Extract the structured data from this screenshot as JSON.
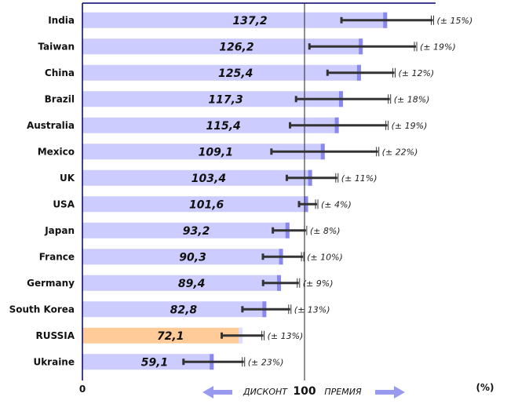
{
  "chart_data": {
    "type": "bar",
    "orientation": "horizontal",
    "categories": [
      "India",
      "Taiwan",
      "China",
      "Brazil",
      "Australia",
      "Mexico",
      "UK",
      "USA",
      "Japan",
      "France",
      "Germany",
      "South Korea",
      "RUSSIA",
      "Ukraine"
    ],
    "values": [
      137.2,
      126.2,
      125.4,
      117.3,
      115.4,
      109.1,
      103.4,
      101.6,
      93.2,
      90.3,
      89.4,
      82.8,
      72.1,
      59.1
    ],
    "value_labels": [
      "137,2",
      "126,2",
      "125,4",
      "117,3",
      "115,4",
      "109,1",
      "103,4",
      "101,6",
      "93,2",
      "90,3",
      "89,4",
      "82,8",
      "72,1",
      "59,1"
    ],
    "error_pct": [
      15,
      19,
      12,
      18,
      19,
      22,
      11,
      4,
      8,
      10,
      9,
      13,
      13,
      23
    ],
    "error_labels": [
      "(± 15%)",
      "(± 19%)",
      "(± 12%)",
      "(± 18%)",
      "(± 19%)",
      "(± 22%)",
      "(± 11%)",
      "(± 4%)",
      "(± 8%)",
      "(± 10%)",
      "(± 9%)",
      "(± 13%)",
      "(± 13%)",
      "(± 23%)"
    ],
    "highlight": "RUSSIA",
    "xlim": [
      0,
      160
    ],
    "reference_line": 100,
    "x_zero_label": "0",
    "x_left_label": "ДИСКОНТ",
    "x_center_label": "100",
    "x_right_label": "ПРЕМИЯ",
    "unit_label": "(%)",
    "colors": {
      "bar": "#ccccff",
      "bar_tip": "#8888ee",
      "highlight_bar": "#ffcc99",
      "error_line": "#333333",
      "axis": "#000066",
      "reference_line": "#222222",
      "arrow": "#9999ee"
    }
  }
}
